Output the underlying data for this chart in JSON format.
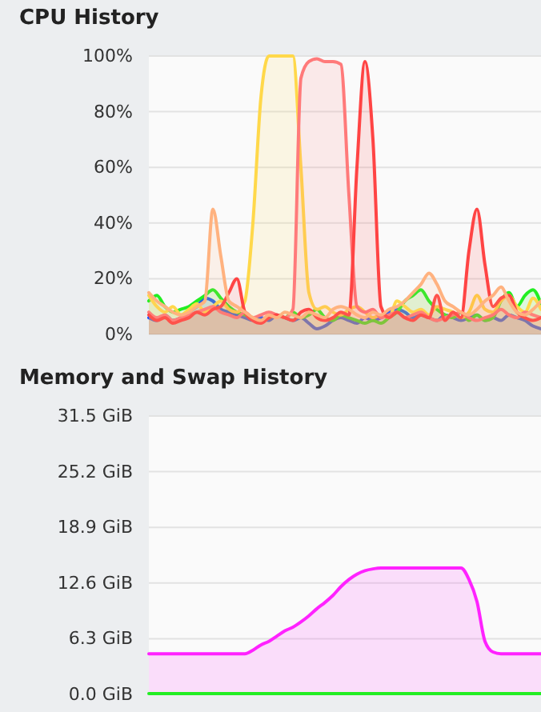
{
  "chart_data": [
    {
      "type": "area",
      "title": "CPU History",
      "categories": [
        null,
        null,
        null,
        null,
        null,
        null,
        null,
        null,
        null,
        null,
        null,
        null,
        null,
        null,
        null,
        null,
        null,
        null,
        null,
        null,
        null,
        null,
        null,
        null,
        null,
        null,
        null,
        null,
        null,
        null,
        null,
        null,
        null,
        null,
        null,
        null,
        null,
        null,
        null,
        null,
        null,
        null,
        null,
        null,
        null,
        null,
        null,
        null,
        null,
        null
      ],
      "ylim": [
        0,
        100
      ],
      "yticks": [
        {
          "value": 0,
          "label": "0%"
        },
        {
          "value": 20,
          "label": "20%"
        },
        {
          "value": 40,
          "label": "40%"
        },
        {
          "value": 60,
          "label": "60%"
        },
        {
          "value": 80,
          "label": "80%"
        },
        {
          "value": 100,
          "label": "100%"
        }
      ],
      "grid": "y",
      "tick_labels": "y",
      "series": [
        {
          "color": "#1f4fff",
          "values": [
            6,
            5,
            7,
            5,
            6,
            8,
            10,
            13,
            12,
            9,
            8,
            7,
            6,
            5,
            6,
            5,
            7,
            6,
            5,
            6,
            4,
            2,
            3,
            5,
            6,
            5,
            4,
            6,
            5,
            6,
            8,
            9,
            8,
            6,
            7,
            6,
            5,
            7,
            6,
            5,
            6,
            7,
            5,
            6,
            5,
            7,
            6,
            5,
            3,
            2
          ]
        },
        {
          "color": "#22ee22",
          "values": [
            12,
            14,
            10,
            8,
            9,
            10,
            12,
            14,
            16,
            13,
            10,
            8,
            7,
            6,
            5,
            6,
            7,
            6,
            8,
            6,
            7,
            9,
            6,
            5,
            7,
            6,
            5,
            4,
            5,
            4,
            6,
            8,
            12,
            14,
            16,
            12,
            9,
            7,
            6,
            8,
            5,
            7,
            5,
            6,
            12,
            15,
            10,
            14,
            16,
            11
          ]
        },
        {
          "color": "#ffd84a",
          "values": [
            14,
            10,
            8,
            10,
            7,
            9,
            11,
            8,
            10,
            12,
            9,
            8,
            12,
            40,
            85,
            100,
            100,
            100,
            100,
            60,
            15,
            9,
            10,
            8,
            7,
            9,
            10,
            8,
            6,
            7,
            6,
            12,
            10,
            8,
            9,
            7,
            10,
            9,
            8,
            6,
            8,
            14,
            9,
            8,
            12,
            14,
            10,
            8,
            13,
            9
          ]
        },
        {
          "color": "#ff7a7a",
          "values": [
            8,
            6,
            7,
            5,
            6,
            7,
            8,
            9,
            10,
            8,
            7,
            6,
            8,
            6,
            7,
            8,
            7,
            6,
            9,
            92,
            98,
            99,
            98,
            98,
            97,
            50,
            10,
            8,
            9,
            6,
            7,
            8,
            6,
            7,
            8,
            6,
            5,
            6,
            7,
            8,
            6,
            5,
            6,
            7,
            9,
            7,
            6,
            8,
            7,
            6
          ]
        },
        {
          "color": "#ff4444",
          "values": [
            7,
            5,
            6,
            4,
            5,
            6,
            8,
            7,
            9,
            10,
            15,
            20,
            8,
            5,
            4,
            6,
            7,
            6,
            5,
            8,
            9,
            6,
            5,
            6,
            8,
            7,
            60,
            98,
            70,
            10,
            6,
            8,
            6,
            5,
            7,
            6,
            14,
            5,
            8,
            6,
            30,
            45,
            25,
            10,
            13,
            14,
            8,
            6,
            5,
            6
          ]
        },
        {
          "color": "#ffb27f",
          "values": [
            15,
            12,
            10,
            8,
            7,
            8,
            10,
            12,
            45,
            28,
            12,
            10,
            8,
            6,
            5,
            7,
            6,
            8,
            7,
            6,
            8,
            7,
            6,
            9,
            10,
            9,
            7,
            6,
            8,
            7,
            9,
            10,
            12,
            15,
            18,
            22,
            18,
            12,
            10,
            8,
            7,
            9,
            12,
            14,
            17,
            12,
            8,
            7,
            9,
            12
          ]
        }
      ]
    },
    {
      "type": "area",
      "title": "Memory and Swap History",
      "categories": [
        null,
        null,
        null,
        null,
        null,
        null,
        null,
        null,
        null,
        null,
        null,
        null,
        null,
        null,
        null,
        null,
        null,
        null,
        null,
        null,
        null,
        null,
        null,
        null,
        null,
        null,
        null,
        null,
        null,
        null,
        null,
        null,
        null,
        null,
        null,
        null,
        null,
        null,
        null,
        null,
        null,
        null,
        null,
        null,
        null,
        null,
        null,
        null,
        null,
        null
      ],
      "ylim": [
        0,
        31.5
      ],
      "yticks": [
        {
          "value": 0,
          "label": "0.0 GiB"
        },
        {
          "value": 6.3,
          "label": "6.3 GiB"
        },
        {
          "value": 12.6,
          "label": "12.6 GiB"
        },
        {
          "value": 18.9,
          "label": "18.9 GiB"
        },
        {
          "value": 25.2,
          "label": "25.2 GiB"
        },
        {
          "value": 31.5,
          "label": "31.5 GiB"
        }
      ],
      "grid": "y",
      "tick_labels": "y",
      "series": [
        {
          "color": "#ff22ff",
          "values": [
            4.6,
            4.6,
            4.6,
            4.6,
            4.6,
            4.6,
            4.6,
            4.6,
            4.6,
            4.6,
            4.6,
            4.6,
            4.6,
            5.0,
            5.6,
            6.0,
            6.6,
            7.2,
            7.6,
            8.2,
            8.9,
            9.7,
            10.4,
            11.2,
            12.2,
            13.0,
            13.6,
            14.0,
            14.2,
            14.3,
            14.3,
            14.3,
            14.3,
            14.3,
            14.3,
            14.3,
            14.3,
            14.3,
            14.3,
            14.3,
            13.0,
            10.5,
            6.0,
            4.8,
            4.6,
            4.6,
            4.6,
            4.6,
            4.6,
            4.6
          ]
        },
        {
          "color": "#22ee22",
          "values": [
            0.1,
            0.1,
            0.1,
            0.1,
            0.1,
            0.1,
            0.1,
            0.1,
            0.1,
            0.1,
            0.1,
            0.1,
            0.1,
            0.1,
            0.1,
            0.1,
            0.1,
            0.1,
            0.1,
            0.1,
            0.1,
            0.1,
            0.1,
            0.1,
            0.1,
            0.1,
            0.1,
            0.1,
            0.1,
            0.1,
            0.1,
            0.1,
            0.1,
            0.1,
            0.1,
            0.1,
            0.1,
            0.1,
            0.1,
            0.1,
            0.1,
            0.1,
            0.1,
            0.1,
            0.1,
            0.1,
            0.1,
            0.1,
            0.1,
            0.1
          ]
        }
      ]
    }
  ]
}
